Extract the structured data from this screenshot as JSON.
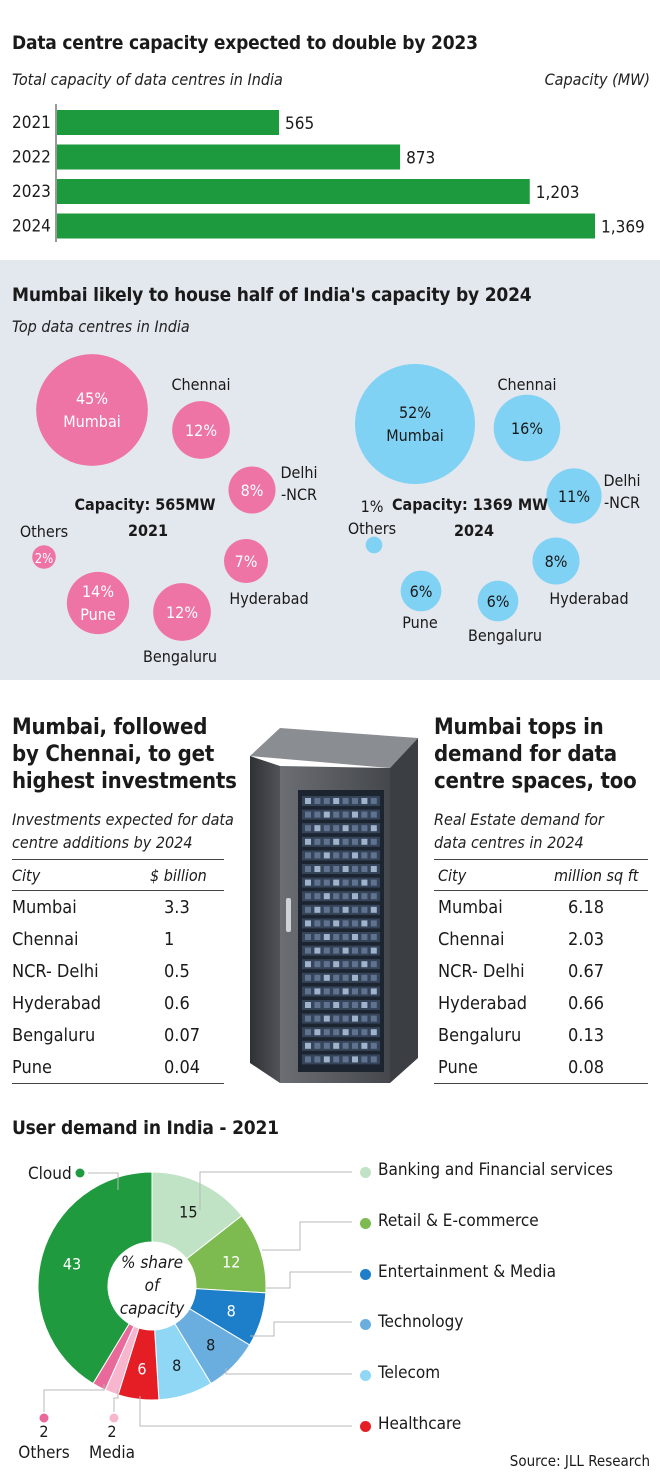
{
  "section1": {
    "title": "Data centre capacity expected to double by 2023",
    "subtitle": "Total capacity of data centres in India",
    "unit_label": "Capacity (MW)"
  },
  "section2": {
    "title": "Mumbai likely to house half of India's capacity by 2024",
    "subtitle": "Top data centres in India",
    "caption_2021_line1": "Capacity: 565MW",
    "caption_2021_line2": "2021",
    "caption_2024_line1": "Capacity: 1369 MW",
    "caption_2024_line2": "2024"
  },
  "section3": {
    "title_lines": [
      "Mumbai, followed",
      "by Chennai, to get",
      "highest investments"
    ],
    "subtitle_lines": [
      "Investments expected for data",
      "centre additions by 2024"
    ],
    "header_city": "City",
    "header_value": "$ billion"
  },
  "section4": {
    "title_lines": [
      "Mumbai tops in",
      "demand for data",
      "centre spaces, too"
    ],
    "subtitle_lines": [
      "Real Estate demand for",
      "data centres in 2024"
    ],
    "header_city": "City",
    "header_value": "million sq ft"
  },
  "section5": {
    "title": "User demand in India - 2021",
    "center_label_lines": [
      "% share",
      "of",
      "capacity"
    ]
  },
  "source": "Source: JLL Research",
  "colors": {
    "bar_green": "#1e9a3e",
    "bubble_pink": "#ee74a6",
    "bubble_blue": "#7fd2f3",
    "panel_bg": "#e3e7ee"
  },
  "chart_data": [
    {
      "type": "bar",
      "orientation": "horizontal",
      "categories": [
        "2021",
        "2022",
        "2023",
        "2024"
      ],
      "values": [
        565,
        873,
        1203,
        1369
      ],
      "value_labels": [
        "565",
        "873",
        "1,203",
        "1,369"
      ],
      "title": "Data centre capacity expected to double by 2023",
      "xlabel": "Capacity (MW)",
      "xlim": [
        0,
        1369
      ]
    },
    {
      "type": "bubble",
      "title": "2021",
      "series": [
        {
          "name": "Mumbai",
          "value": 45,
          "label": "45%"
        },
        {
          "name": "Chennai",
          "value": 12,
          "label": "12%"
        },
        {
          "name": "Delhi -NCR",
          "value": 8,
          "label": "8%"
        },
        {
          "name": "Hyderabad",
          "value": 7,
          "label": "7%"
        },
        {
          "name": "Bengaluru",
          "value": 12,
          "label": "12%"
        },
        {
          "name": "Pune",
          "value": 14,
          "label": "14%"
        },
        {
          "name": "Others",
          "value": 2,
          "label": "2%"
        }
      ]
    },
    {
      "type": "bubble",
      "title": "2024",
      "series": [
        {
          "name": "Mumbai",
          "value": 52,
          "label": "52%"
        },
        {
          "name": "Chennai",
          "value": 16,
          "label": "16%"
        },
        {
          "name": "Delhi -NCR",
          "value": 11,
          "label": "11%"
        },
        {
          "name": "Hyderabad",
          "value": 8,
          "label": "8%"
        },
        {
          "name": "Bengaluru",
          "value": 6,
          "label": "6%"
        },
        {
          "name": "Pune",
          "value": 6,
          "label": "6%"
        },
        {
          "name": "Others",
          "value": 1,
          "label": "1%"
        }
      ]
    },
    {
      "type": "table",
      "title": "Mumbai, followed by Chennai, to get highest investments",
      "columns": [
        "City",
        "$ billion"
      ],
      "rows": [
        [
          "Mumbai",
          "3.3"
        ],
        [
          "Chennai",
          "1"
        ],
        [
          "NCR- Delhi",
          "0.5"
        ],
        [
          "Hyderabad",
          "0.6"
        ],
        [
          "Bengaluru",
          "0.07"
        ],
        [
          "Pune",
          "0.04"
        ]
      ]
    },
    {
      "type": "table",
      "title": "Mumbai tops in demand for data centre spaces, too",
      "columns": [
        "City",
        "million sq ft"
      ],
      "rows": [
        [
          "Mumbai",
          "6.18"
        ],
        [
          "Chennai",
          "2.03"
        ],
        [
          "NCR- Delhi",
          "0.67"
        ],
        [
          "Hyderabad",
          "0.66"
        ],
        [
          "Bengaluru",
          "0.13"
        ],
        [
          "Pune",
          "0.08"
        ]
      ]
    },
    {
      "type": "pie",
      "donut": true,
      "title": "User demand in India - 2021",
      "slices": [
        {
          "name": "Banking and Financial services",
          "value": 15,
          "label": "15",
          "color": "#bfe3c4"
        },
        {
          "name": "Retail & E-commerce",
          "value": 12,
          "label": "12",
          "color": "#7dba4f"
        },
        {
          "name": "Entertainment & Media",
          "value": 8,
          "label": "8",
          "color": "#1d7fc9"
        },
        {
          "name": "Technology",
          "value": 8,
          "label": "8",
          "color": "#6aaee0"
        },
        {
          "name": "Telecom",
          "value": 8,
          "label": "8",
          "color": "#8fd7f5"
        },
        {
          "name": "Healthcare",
          "value": 6,
          "label": "6",
          "color": "#e51e25"
        },
        {
          "name": "Media",
          "value": 2,
          "label": "2",
          "color": "#f7b6cd"
        },
        {
          "name": "Others",
          "value": 2,
          "label": "2",
          "color": "#e9699b"
        },
        {
          "name": "Cloud",
          "value": 43,
          "label": "43",
          "color": "#1f9a3f"
        }
      ]
    }
  ]
}
